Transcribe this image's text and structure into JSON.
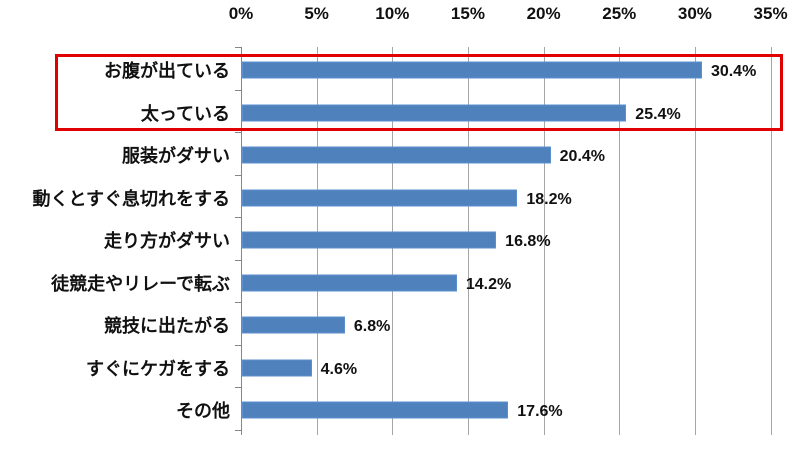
{
  "chart_data": {
    "type": "bar",
    "orientation": "horizontal",
    "title": "",
    "xlabel": "",
    "ylabel": "",
    "xlim": [
      0,
      35
    ],
    "x_ticks": [
      "0%",
      "5%",
      "10%",
      "15%",
      "20%",
      "25%",
      "30%",
      "35%"
    ],
    "x_axis_position": "top",
    "grid": true,
    "legend": null,
    "categories": [
      "お腹が出ている",
      "太っている",
      "服装がダサい",
      "動くとすぐ息切れをする",
      "走り方がダサい",
      "徒競走やリレーで転ぶ",
      "競技に出たがる",
      "すぐにケガをする",
      "その他"
    ],
    "values": [
      30.4,
      25.4,
      20.4,
      18.2,
      16.8,
      14.2,
      6.8,
      4.6,
      17.6
    ],
    "value_labels": [
      "30.4%",
      "25.4%",
      "20.4%",
      "18.2%",
      "16.8%",
      "14.2%",
      "6.8%",
      "4.6%",
      "17.6%"
    ],
    "annotations": [
      {
        "type": "highlight-box",
        "color": "#e00000",
        "covers": [
          "お腹が出ている",
          "太っている"
        ]
      }
    ],
    "bar_color": "#4f81bd"
  }
}
